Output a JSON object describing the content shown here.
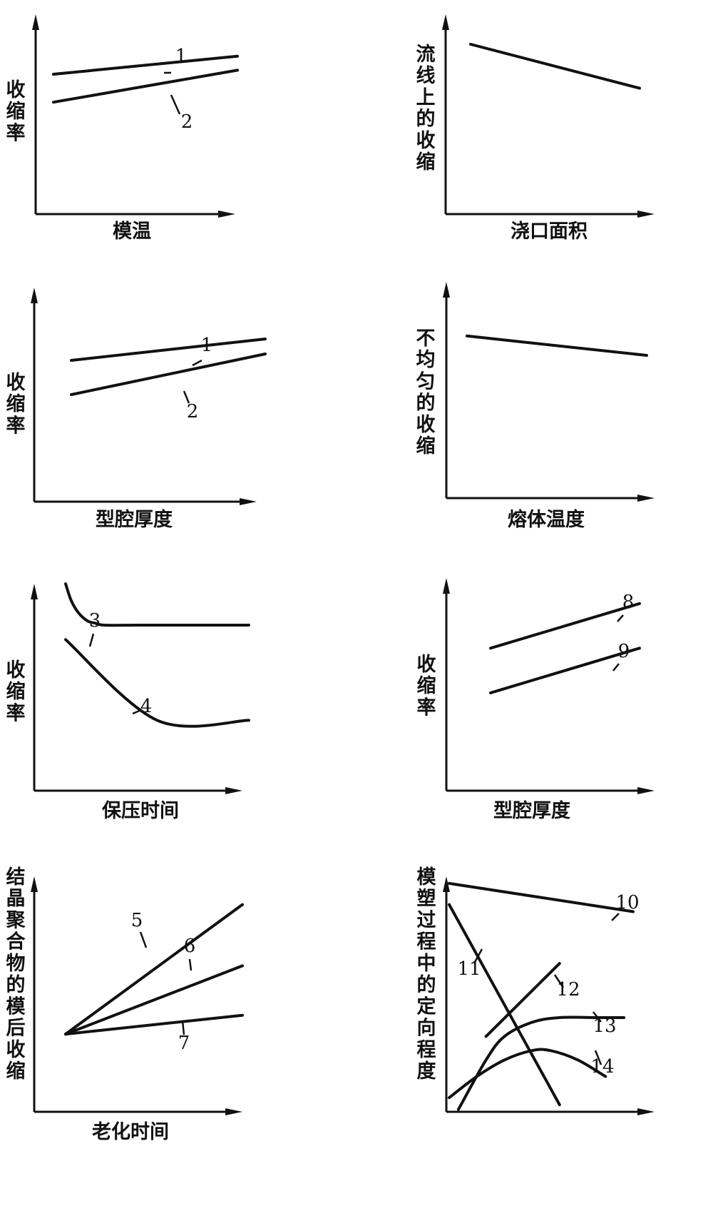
{
  "chart_data": [
    {
      "type": "line",
      "xlabel": "模温",
      "ylabel": "收缩率",
      "series": [
        {
          "name": "1",
          "x": [
            0,
            1
          ],
          "y": [
            0.7,
            0.79
          ]
        },
        {
          "name": "2",
          "x": [
            0,
            1
          ],
          "y": [
            0.56,
            0.72
          ]
        }
      ]
    },
    {
      "type": "line",
      "xlabel": "浇口面积",
      "ylabel": "流线上的收缩",
      "series": [
        {
          "name": "",
          "x": [
            0,
            1
          ],
          "y": [
            0.85,
            0.63
          ]
        }
      ]
    },
    {
      "type": "line",
      "xlabel": "型腔厚度",
      "ylabel": "收缩率",
      "series": [
        {
          "name": "1",
          "x": [
            0,
            1
          ],
          "y": [
            0.66,
            0.76
          ]
        },
        {
          "name": "2",
          "x": [
            0,
            1
          ],
          "y": [
            0.5,
            0.69
          ]
        }
      ]
    },
    {
      "type": "line",
      "xlabel": "熔体温度",
      "ylabel": "不均匀的收缩",
      "series": [
        {
          "name": "",
          "x": [
            0,
            1
          ],
          "y": [
            0.75,
            0.66
          ]
        }
      ]
    },
    {
      "type": "line",
      "xlabel": "保压时间",
      "ylabel": "收缩率",
      "series": [
        {
          "name": "3",
          "x": [
            0,
            0.03,
            0.07,
            0.12,
            0.16,
            0.21,
            0.4,
            0.7,
            1
          ],
          "y": [
            1.0,
            0.92,
            0.86,
            0.82,
            0.81,
            0.8,
            0.8,
            0.8,
            0.8
          ]
        },
        {
          "name": "4",
          "x": [
            0,
            0.5,
            1
          ],
          "y": [
            0.73,
            0.34,
            0.34
          ]
        }
      ]
    },
    {
      "type": "line",
      "xlabel": "型腔厚度",
      "ylabel": "收缩率",
      "series": [
        {
          "name": "8",
          "x": [
            0,
            1
          ],
          "y": [
            0.67,
            0.88
          ]
        },
        {
          "name": "9",
          "x": [
            0,
            1
          ],
          "y": [
            0.46,
            0.67
          ]
        }
      ]
    },
    {
      "type": "line",
      "xlabel": "老化时间",
      "ylabel": "结晶聚合物的模后收缩",
      "series": [
        {
          "name": "5",
          "x": [
            0,
            1
          ],
          "y": [
            0.33,
            0.88
          ]
        },
        {
          "name": "6",
          "x": [
            0,
            1
          ],
          "y": [
            0.33,
            0.62
          ]
        },
        {
          "name": "7",
          "x": [
            0,
            1
          ],
          "y": [
            0.33,
            0.41
          ]
        }
      ]
    },
    {
      "type": "line",
      "xlabel": "",
      "ylabel": "模塑过程中的定向程度",
      "series": [
        {
          "name": "10",
          "x": [
            0,
            1
          ],
          "y": [
            0.97,
            0.85
          ]
        },
        {
          "name": "11",
          "x": [
            0,
            0.6
          ],
          "y": [
            0.88,
            0.03
          ]
        },
        {
          "name": "12",
          "x": [
            0.2,
            0.6
          ],
          "y": [
            0.32,
            0.63
          ]
        },
        {
          "name": "13",
          "x": [
            0.05,
            0.2,
            0.3,
            0.45,
            0.6,
            0.8,
            0.95
          ],
          "y": [
            0.01,
            0.22,
            0.32,
            0.38,
            0.4,
            0.4,
            0.4
          ]
        },
        {
          "name": "14",
          "x": [
            0,
            0.15,
            0.3,
            0.45,
            0.55,
            0.7,
            0.85
          ],
          "y": [
            0.06,
            0.15,
            0.22,
            0.26,
            0.26,
            0.22,
            0.15
          ]
        }
      ]
    }
  ]
}
